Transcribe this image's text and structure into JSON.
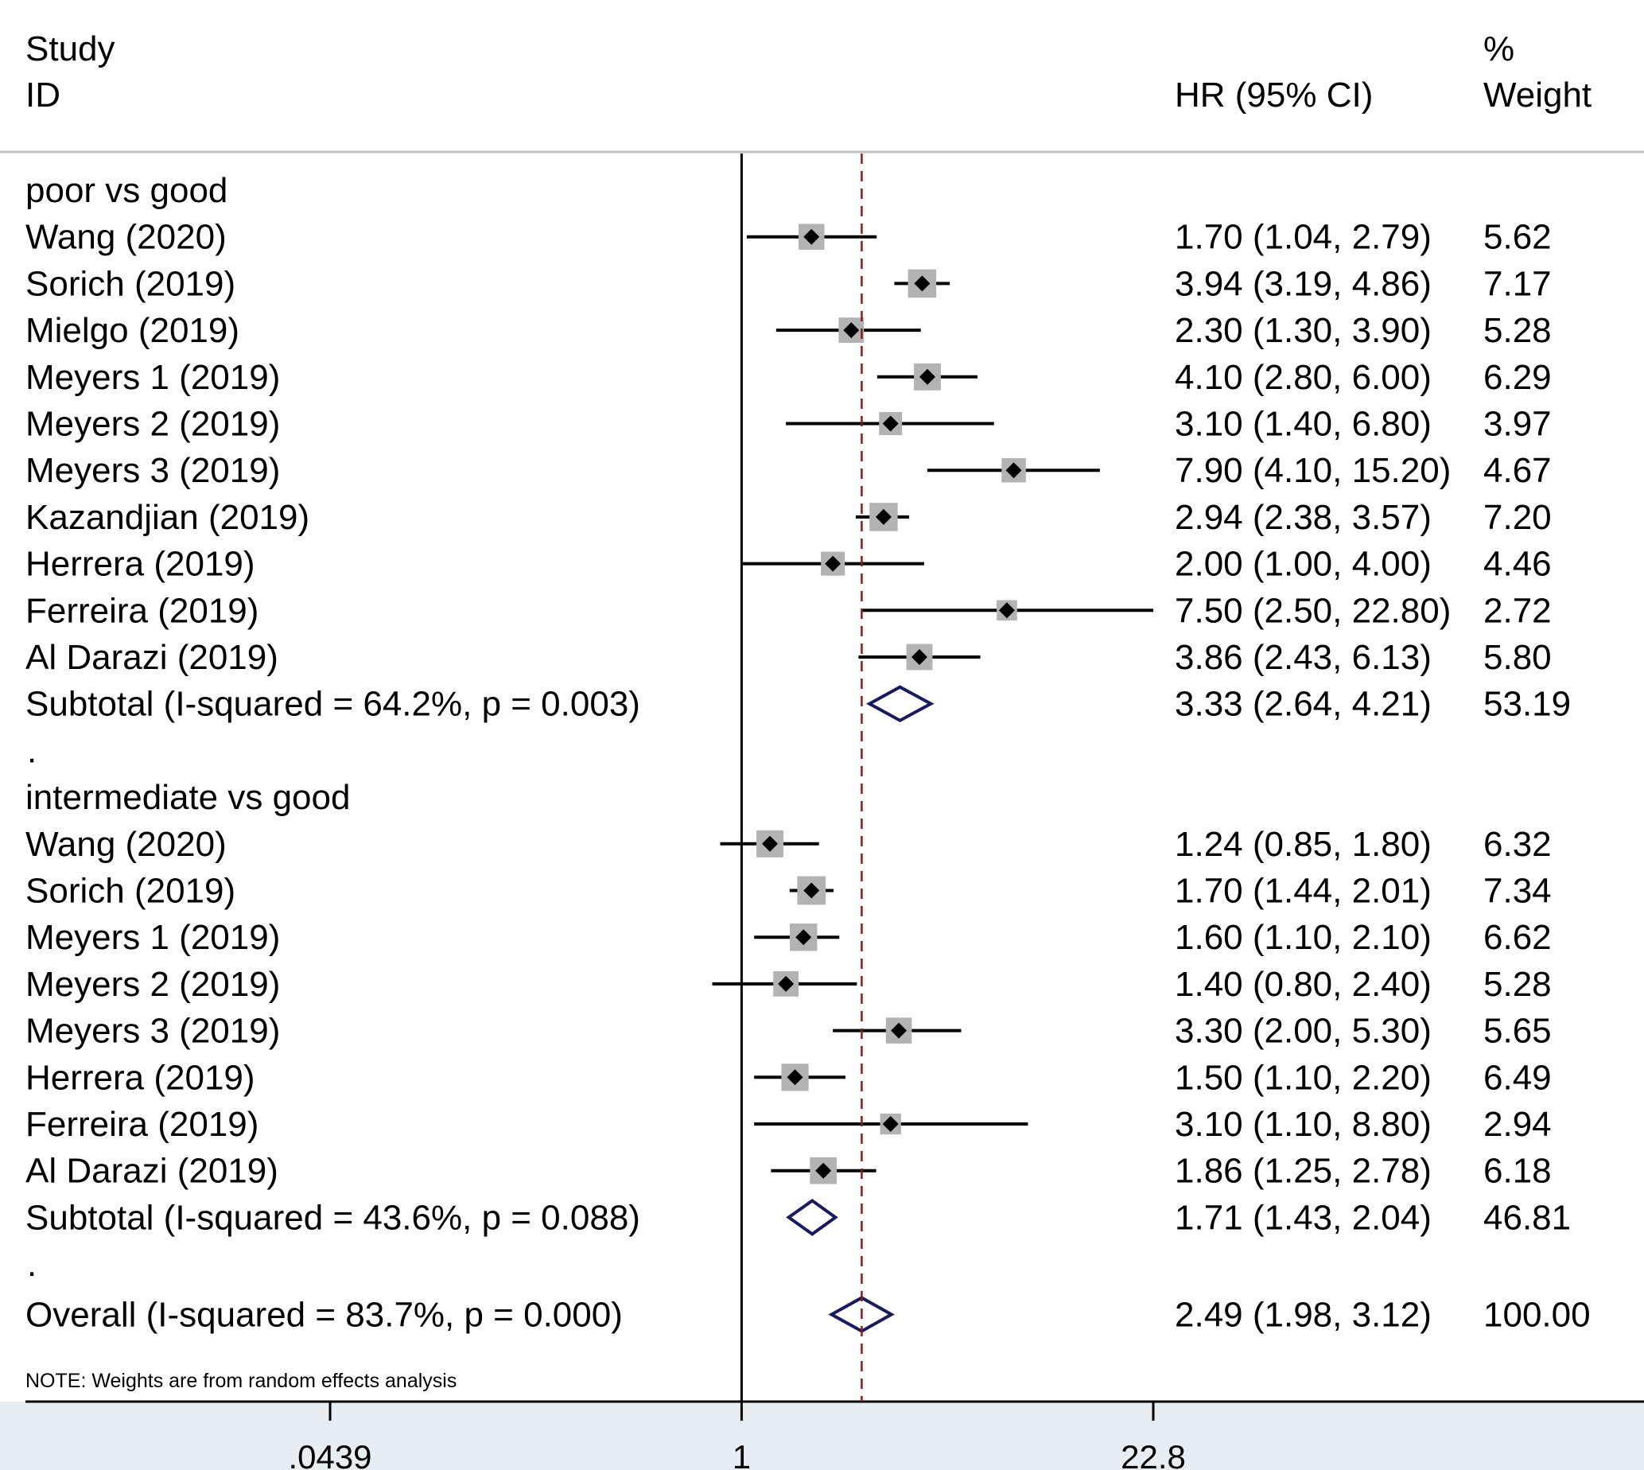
{
  "chart_data": {
    "type": "forest",
    "measure": "HR",
    "scale": "log",
    "headers": {
      "study_line1": "Study",
      "study_line2": "ID",
      "effect": "HR (95% CI)",
      "weight_line1": "%",
      "weight_line2": "Weight"
    },
    "groups": [
      {
        "name": "poor vs good",
        "studies": [
          {
            "label": "Wang  (2020)",
            "hr": 1.7,
            "lo": 1.04,
            "hi": 2.79,
            "ci_text": "1.70 (1.04, 2.79)",
            "weight": "5.62"
          },
          {
            "label": "Sorich  (2019)",
            "hr": 3.94,
            "lo": 3.19,
            "hi": 4.86,
            "ci_text": "3.94 (3.19, 4.86)",
            "weight": "7.17"
          },
          {
            "label": "Mielgo (2019)",
            "hr": 2.3,
            "lo": 1.3,
            "hi": 3.9,
            "ci_text": "2.30 (1.30, 3.90)",
            "weight": "5.28"
          },
          {
            "label": "Meyers 1  (2019)",
            "hr": 4.1,
            "lo": 2.8,
            "hi": 6.0,
            "ci_text": "4.10 (2.80, 6.00)",
            "weight": "6.29"
          },
          {
            "label": "Meyers 2 (2019)",
            "hr": 3.1,
            "lo": 1.4,
            "hi": 6.8,
            "ci_text": "3.10 (1.40, 6.80)",
            "weight": "3.97"
          },
          {
            "label": "Meyers 3 (2019)",
            "hr": 7.9,
            "lo": 4.1,
            "hi": 15.2,
            "ci_text": "7.90 (4.10, 15.20)",
            "weight": "4.67"
          },
          {
            "label": "Kazandjian  (2019)",
            "hr": 2.94,
            "lo": 2.38,
            "hi": 3.57,
            "ci_text": "2.94 (2.38, 3.57)",
            "weight": "7.20"
          },
          {
            "label": "Herrera  (2019)",
            "hr": 2.0,
            "lo": 1.0,
            "hi": 4.0,
            "ci_text": "2.00 (1.00, 4.00)",
            "weight": "4.46"
          },
          {
            "label": "Ferreira  (2019)",
            "hr": 7.5,
            "lo": 2.5,
            "hi": 22.8,
            "ci_text": "7.50 (2.50, 22.80)",
            "weight": "2.72"
          },
          {
            "label": "Al Darazi  (2019)",
            "hr": 3.86,
            "lo": 2.43,
            "hi": 6.13,
            "ci_text": "3.86 (2.43, 6.13)",
            "weight": "5.80"
          }
        ],
        "subtotal": {
          "label": "Subtotal  (I-squared = 64.2%, p = 0.003)",
          "hr": 3.33,
          "lo": 2.64,
          "hi": 4.21,
          "ci_text": "3.33 (2.64, 4.21)",
          "weight": "53.19"
        }
      },
      {
        "name": "intermediate vs good",
        "studies": [
          {
            "label": "Wang  (2020)",
            "hr": 1.24,
            "lo": 0.85,
            "hi": 1.8,
            "ci_text": "1.24 (0.85, 1.80)",
            "weight": "6.32"
          },
          {
            "label": "Sorich  (2019)",
            "hr": 1.7,
            "lo": 1.44,
            "hi": 2.01,
            "ci_text": "1.70 (1.44, 2.01)",
            "weight": "7.34"
          },
          {
            "label": "Meyers 1  (2019)",
            "hr": 1.6,
            "lo": 1.1,
            "hi": 2.1,
            "ci_text": "1.60 (1.10, 2.10)",
            "weight": "6.62"
          },
          {
            "label": "Meyers 2 (2019)",
            "hr": 1.4,
            "lo": 0.8,
            "hi": 2.4,
            "ci_text": "1.40 (0.80, 2.40)",
            "weight": "5.28"
          },
          {
            "label": "Meyers 3 (2019)",
            "hr": 3.3,
            "lo": 2.0,
            "hi": 5.3,
            "ci_text": "3.30 (2.00, 5.30)",
            "weight": "5.65"
          },
          {
            "label": "Herrera  (2019)",
            "hr": 1.5,
            "lo": 1.1,
            "hi": 2.2,
            "ci_text": "1.50 (1.10, 2.20)",
            "weight": "6.49"
          },
          {
            "label": "Ferreira  (2019)",
            "hr": 3.1,
            "lo": 1.1,
            "hi": 8.8,
            "ci_text": "3.10 (1.10, 8.80)",
            "weight": "2.94"
          },
          {
            "label": "Al Darazi  (2019)",
            "hr": 1.86,
            "lo": 1.25,
            "hi": 2.78,
            "ci_text": "1.86 (1.25, 2.78)",
            "weight": "6.18"
          }
        ],
        "subtotal": {
          "label": "Subtotal  (I-squared = 43.6%, p = 0.088)",
          "hr": 1.71,
          "lo": 1.43,
          "hi": 2.04,
          "ci_text": "1.71 (1.43, 2.04)",
          "weight": "46.81"
        }
      }
    ],
    "separator": ".",
    "overall": {
      "label": "Overall  (I-squared = 83.7%, p = 0.000)",
      "hr": 2.49,
      "lo": 1.98,
      "hi": 3.12,
      "ci_text": "2.49 (1.98, 3.12)",
      "weight": "100.00"
    },
    "note": "NOTE: Weights are from random effects analysis",
    "x_axis": {
      "min": 0.0439,
      "max": 22.8,
      "null_value": 1,
      "ticks": [
        {
          "value": 0.0439,
          "label": ".0439"
        },
        {
          "value": 1,
          "label": "1"
        },
        {
          "value": 22.8,
          "label": "22.8"
        }
      ]
    },
    "colors": {
      "box": "#b3b3b3",
      "point": "#000000",
      "diamond": "#1a1a5e",
      "reference_line": "#8b1a1a",
      "footer_band": "#e6eef3"
    }
  }
}
